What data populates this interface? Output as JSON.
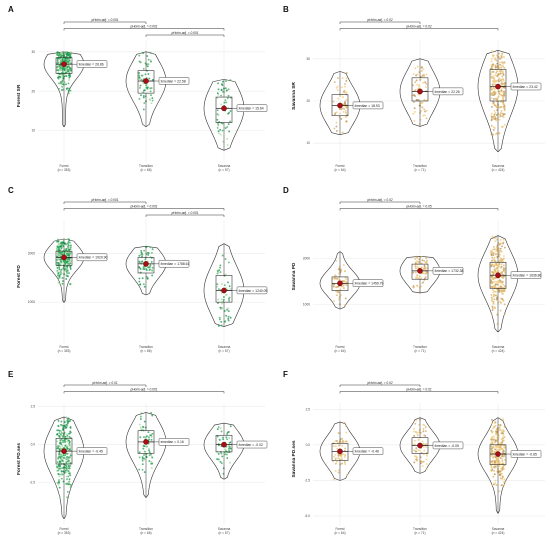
{
  "colors": {
    "forest_dark": "#1a9850",
    "forest_mid": "#41ab5d",
    "forest_light": "#a1d99b",
    "savanna_light": "#f2c97a",
    "savanna_mid": "#d9b061",
    "savanna_dark": "#b8935a",
    "mean_point": "#a50f15",
    "violin": "#333333",
    "grid": "#ebebeb"
  },
  "chart_data": [
    {
      "id": "A",
      "type": "violin",
      "letter": "A",
      "ylabel": "Forest SR",
      "yticks": [
        "30",
        "20",
        "10"
      ],
      "ytick_values": [
        30,
        20,
        10
      ],
      "ylim": [
        2.5,
        32.5
      ],
      "categories": [
        "Forest",
        "Transition",
        "Savanna"
      ],
      "counts": [
        "(n = 353)",
        "(n = 66)",
        "(n = 57)"
      ],
      "color_scheme": "forest",
      "medians": [
        26.86,
        22.58,
        15.64
      ],
      "median_labels": [
        "x̄median = 26.86",
        "x̄median = 22.58",
        "x̄median = 15.64"
      ],
      "quartiles": [
        [
          24.5,
          28.5
        ],
        [
          19.5,
          25.2
        ],
        [
          12.0,
          18.5
        ]
      ],
      "ranges": [
        [
          11,
          30
        ],
        [
          11,
          30
        ],
        [
          5,
          23
        ]
      ],
      "sig": [
        {
          "from": 0,
          "to": 1,
          "label": "pHolm-adj. = 0.001"
        },
        {
          "from": 0,
          "to": 2,
          "label": "pHolm-adj. = 0.001"
        },
        {
          "from": 1,
          "to": 2,
          "label": "pHolm-adj. = 0.001"
        }
      ]
    },
    {
      "id": "B",
      "type": "violin",
      "letter": "B",
      "ylabel": "Savanna SR",
      "yticks": [
        "30",
        "20",
        "10"
      ],
      "ytick_values": [
        30,
        20,
        10
      ],
      "ylim": [
        6,
        34
      ],
      "categories": [
        "Forest",
        "Transition",
        "Savanna"
      ],
      "counts": [
        "(n = 64)",
        "(n = 71)",
        "(n = 424)"
      ],
      "color_scheme": "savanna",
      "medians": [
        18.93,
        22.26,
        23.42
      ],
      "median_labels": [
        "x̄median = 18.93",
        "x̄median = 22.26",
        "x̄median = 23.42"
      ],
      "quartiles": [
        [
          16.5,
          21.5
        ],
        [
          20.0,
          25.5
        ],
        [
          20.0,
          27.5
        ]
      ],
      "ranges": [
        [
          12,
          27
        ],
        [
          14,
          30
        ],
        [
          8,
          32
        ]
      ],
      "sig": [
        {
          "from": 0,
          "to": 1,
          "label": "pHolm-adj. = 0.02"
        },
        {
          "from": 0,
          "to": 2,
          "label": "pHolm-adj. = 0.02"
        }
      ]
    },
    {
      "id": "C",
      "type": "violin",
      "letter": "C",
      "ylabel": "Forest PD",
      "yticks": [
        "2000",
        "1000"
      ],
      "ytick_values": [
        2000,
        1000
      ],
      "ylim": [
        200,
        2650
      ],
      "categories": [
        "Forest",
        "Transition",
        "Savanna"
      ],
      "counts": [
        "(n = 353)",
        "(n = 66)",
        "(n = 57)"
      ],
      "color_scheme": "forest",
      "medians": [
        1920.9,
        1788.61,
        1240.09
      ],
      "median_labels": [
        "x̄median = 1920.90",
        "x̄median = 1788.61",
        "x̄median = 1240.09"
      ],
      "quartiles": [
        [
          1760,
          2050
        ],
        [
          1600,
          1920
        ],
        [
          1000,
          1550
        ]
      ],
      "ranges": [
        [
          1000,
          2300
        ],
        [
          1150,
          2150
        ],
        [
          500,
          2200
        ]
      ],
      "sig": [
        {
          "from": 0,
          "to": 1,
          "label": "pHolm-adj. = 0.001"
        },
        {
          "from": 0,
          "to": 2,
          "label": "pHolm-adj. = 0.001"
        },
        {
          "from": 1,
          "to": 2,
          "label": "pHolm-adj. = 0.001"
        }
      ]
    },
    {
      "id": "D",
      "type": "violin",
      "letter": "D",
      "ylabel": "Savanna PD",
      "yticks": [
        "2000",
        "1000"
      ],
      "ytick_values": [
        2000,
        1000
      ],
      "ylim": [
        200,
        2800
      ],
      "categories": [
        "Forest",
        "Transition",
        "Savanna"
      ],
      "counts": [
        "(n = 64)",
        "(n = 71)",
        "(n = 424)"
      ],
      "color_scheme": "savanna",
      "medians": [
        1459.79,
        1732.38,
        1636.86
      ],
      "median_labels": [
        "x̄median = 1459.79",
        "x̄median = 1732.38",
        "x̄median = 1636.86"
      ],
      "quartiles": [
        [
          1300,
          1600
        ],
        [
          1550,
          1880
        ],
        [
          1350,
          1920
        ]
      ],
      "ranges": [
        [
          900,
          2150
        ],
        [
          1250,
          2050
        ],
        [
          400,
          2500
        ]
      ],
      "sig": [
        {
          "from": 0,
          "to": 1,
          "label": "pHolm-adj. = 0.02"
        },
        {
          "from": 0,
          "to": 2,
          "label": "pHolm-adj. = 0.05"
        }
      ]
    },
    {
      "id": "E",
      "type": "violin",
      "letter": "E",
      "ylabel": "Forest PD.ses",
      "yticks": [
        "2.5",
        "0.0",
        "-2.5"
      ],
      "ytick_values": [
        2.5,
        0,
        -2.5
      ],
      "ylim": [
        -5.2,
        2.6
      ],
      "categories": [
        "Forest",
        "Transition",
        "Savanna"
      ],
      "counts": [
        "(n = 353)",
        "(n = 66)",
        "(n = 57)"
      ],
      "color_scheme": "forest",
      "medians": [
        -0.45,
        0.16,
        -0.02
      ],
      "median_labels": [
        "x̄median = -0.45",
        "x̄median = 0.16",
        "x̄median = -0.02"
      ],
      "quartiles": [
        [
          -1.3,
          0.4
        ],
        [
          -0.6,
          0.9
        ],
        [
          -0.5,
          0.6
        ]
      ],
      "ranges": [
        [
          -4.9,
          1.8
        ],
        [
          -3.5,
          2.1
        ],
        [
          -2.3,
          1.4
        ]
      ],
      "sig": [
        {
          "from": 0,
          "to": 1,
          "label": "pHolm-adj. = 0.01"
        },
        {
          "from": 0,
          "to": 2,
          "label": "pHolm-adj. = 0.001"
        }
      ]
    },
    {
      "id": "F",
      "type": "violin",
      "letter": "F",
      "ylabel": "Savanna PD.ses",
      "yticks": [
        "2.5",
        "0.0",
        "-2.5",
        "-5.0"
      ],
      "ytick_values": [
        2.5,
        0,
        -2.5,
        -5.0
      ],
      "ylim": [
        -5.5,
        2.8
      ],
      "categories": [
        "Forest",
        "Transition",
        "Savanna"
      ],
      "counts": [
        "(n = 64)",
        "(n = 71)",
        "(n = 424)"
      ],
      "color_scheme": "savanna",
      "medians": [
        -0.46,
        -0.05,
        -0.65
      ],
      "median_labels": [
        "x̄median = -0.46",
        "x̄median = -0.05",
        "x̄median = -0.65"
      ],
      "quartiles": [
        [
          -1.1,
          0.1
        ],
        [
          -0.6,
          0.5
        ],
        [
          -1.4,
          0.0
        ]
      ],
      "ranges": [
        [
          -2.5,
          1.6
        ],
        [
          -2.0,
          1.9
        ],
        [
          -4.8,
          1.9
        ]
      ],
      "sig": [
        {
          "from": 0,
          "to": 1,
          "label": "pHolm-adj. = 0.02"
        },
        {
          "from": 0,
          "to": 2,
          "label": "pHolm-adj. = 0.01"
        }
      ]
    }
  ]
}
